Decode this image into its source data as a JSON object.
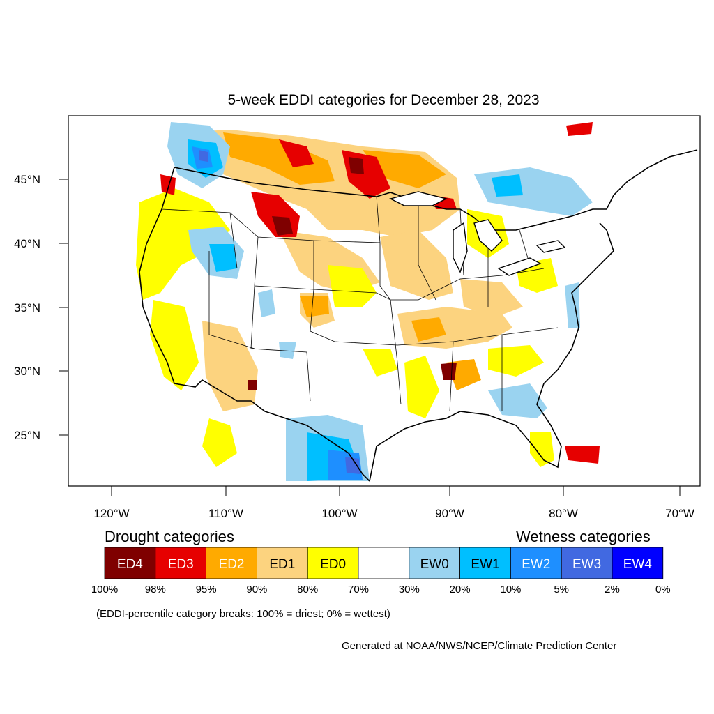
{
  "title": "5-week EDDI categories for December 28, 2023",
  "lat_labels": [
    "45°N",
    "40°N",
    "35°N",
    "30°N",
    "25°N"
  ],
  "lon_labels": [
    "120°W",
    "110°W",
    "100°W",
    "90°W",
    "80°W",
    "70°W"
  ],
  "legend": {
    "drought_heading": "Drought categories",
    "wetness_heading": "Wetness categories",
    "categories": [
      {
        "label": "ED4",
        "color": "#7f0000",
        "text_color": "#ffffff"
      },
      {
        "label": "ED3",
        "color": "#e60000",
        "text_color": "#ffffff"
      },
      {
        "label": "ED2",
        "color": "#ffaa00",
        "text_color": "#ffffff"
      },
      {
        "label": "ED1",
        "color": "#fcd37f",
        "text_color": "#000000"
      },
      {
        "label": "ED0",
        "color": "#ffff00",
        "text_color": "#000000"
      },
      {
        "label": "",
        "color": "#ffffff",
        "text_color": "#000000"
      },
      {
        "label": "EW0",
        "color": "#9ad3f0",
        "text_color": "#000000"
      },
      {
        "label": "EW1",
        "color": "#00bfff",
        "text_color": "#000000"
      },
      {
        "label": "EW2",
        "color": "#1e8fff",
        "text_color": "#ffffff"
      },
      {
        "label": "EW3",
        "color": "#4169e1",
        "text_color": "#ffffff"
      },
      {
        "label": "EW4",
        "color": "#0000ff",
        "text_color": "#ffffff"
      }
    ],
    "percent_breaks": [
      "100%",
      "98%",
      "95%",
      "90%",
      "80%",
      "70%",
      "30%",
      "20%",
      "10%",
      "5%",
      "2%",
      "0%"
    ]
  },
  "note": "(EDDI-percentile category breaks: 100% = driest; 0% = wettest)",
  "credit": "Generated at NOAA/NWS/NCEP/Climate Prediction Center"
}
